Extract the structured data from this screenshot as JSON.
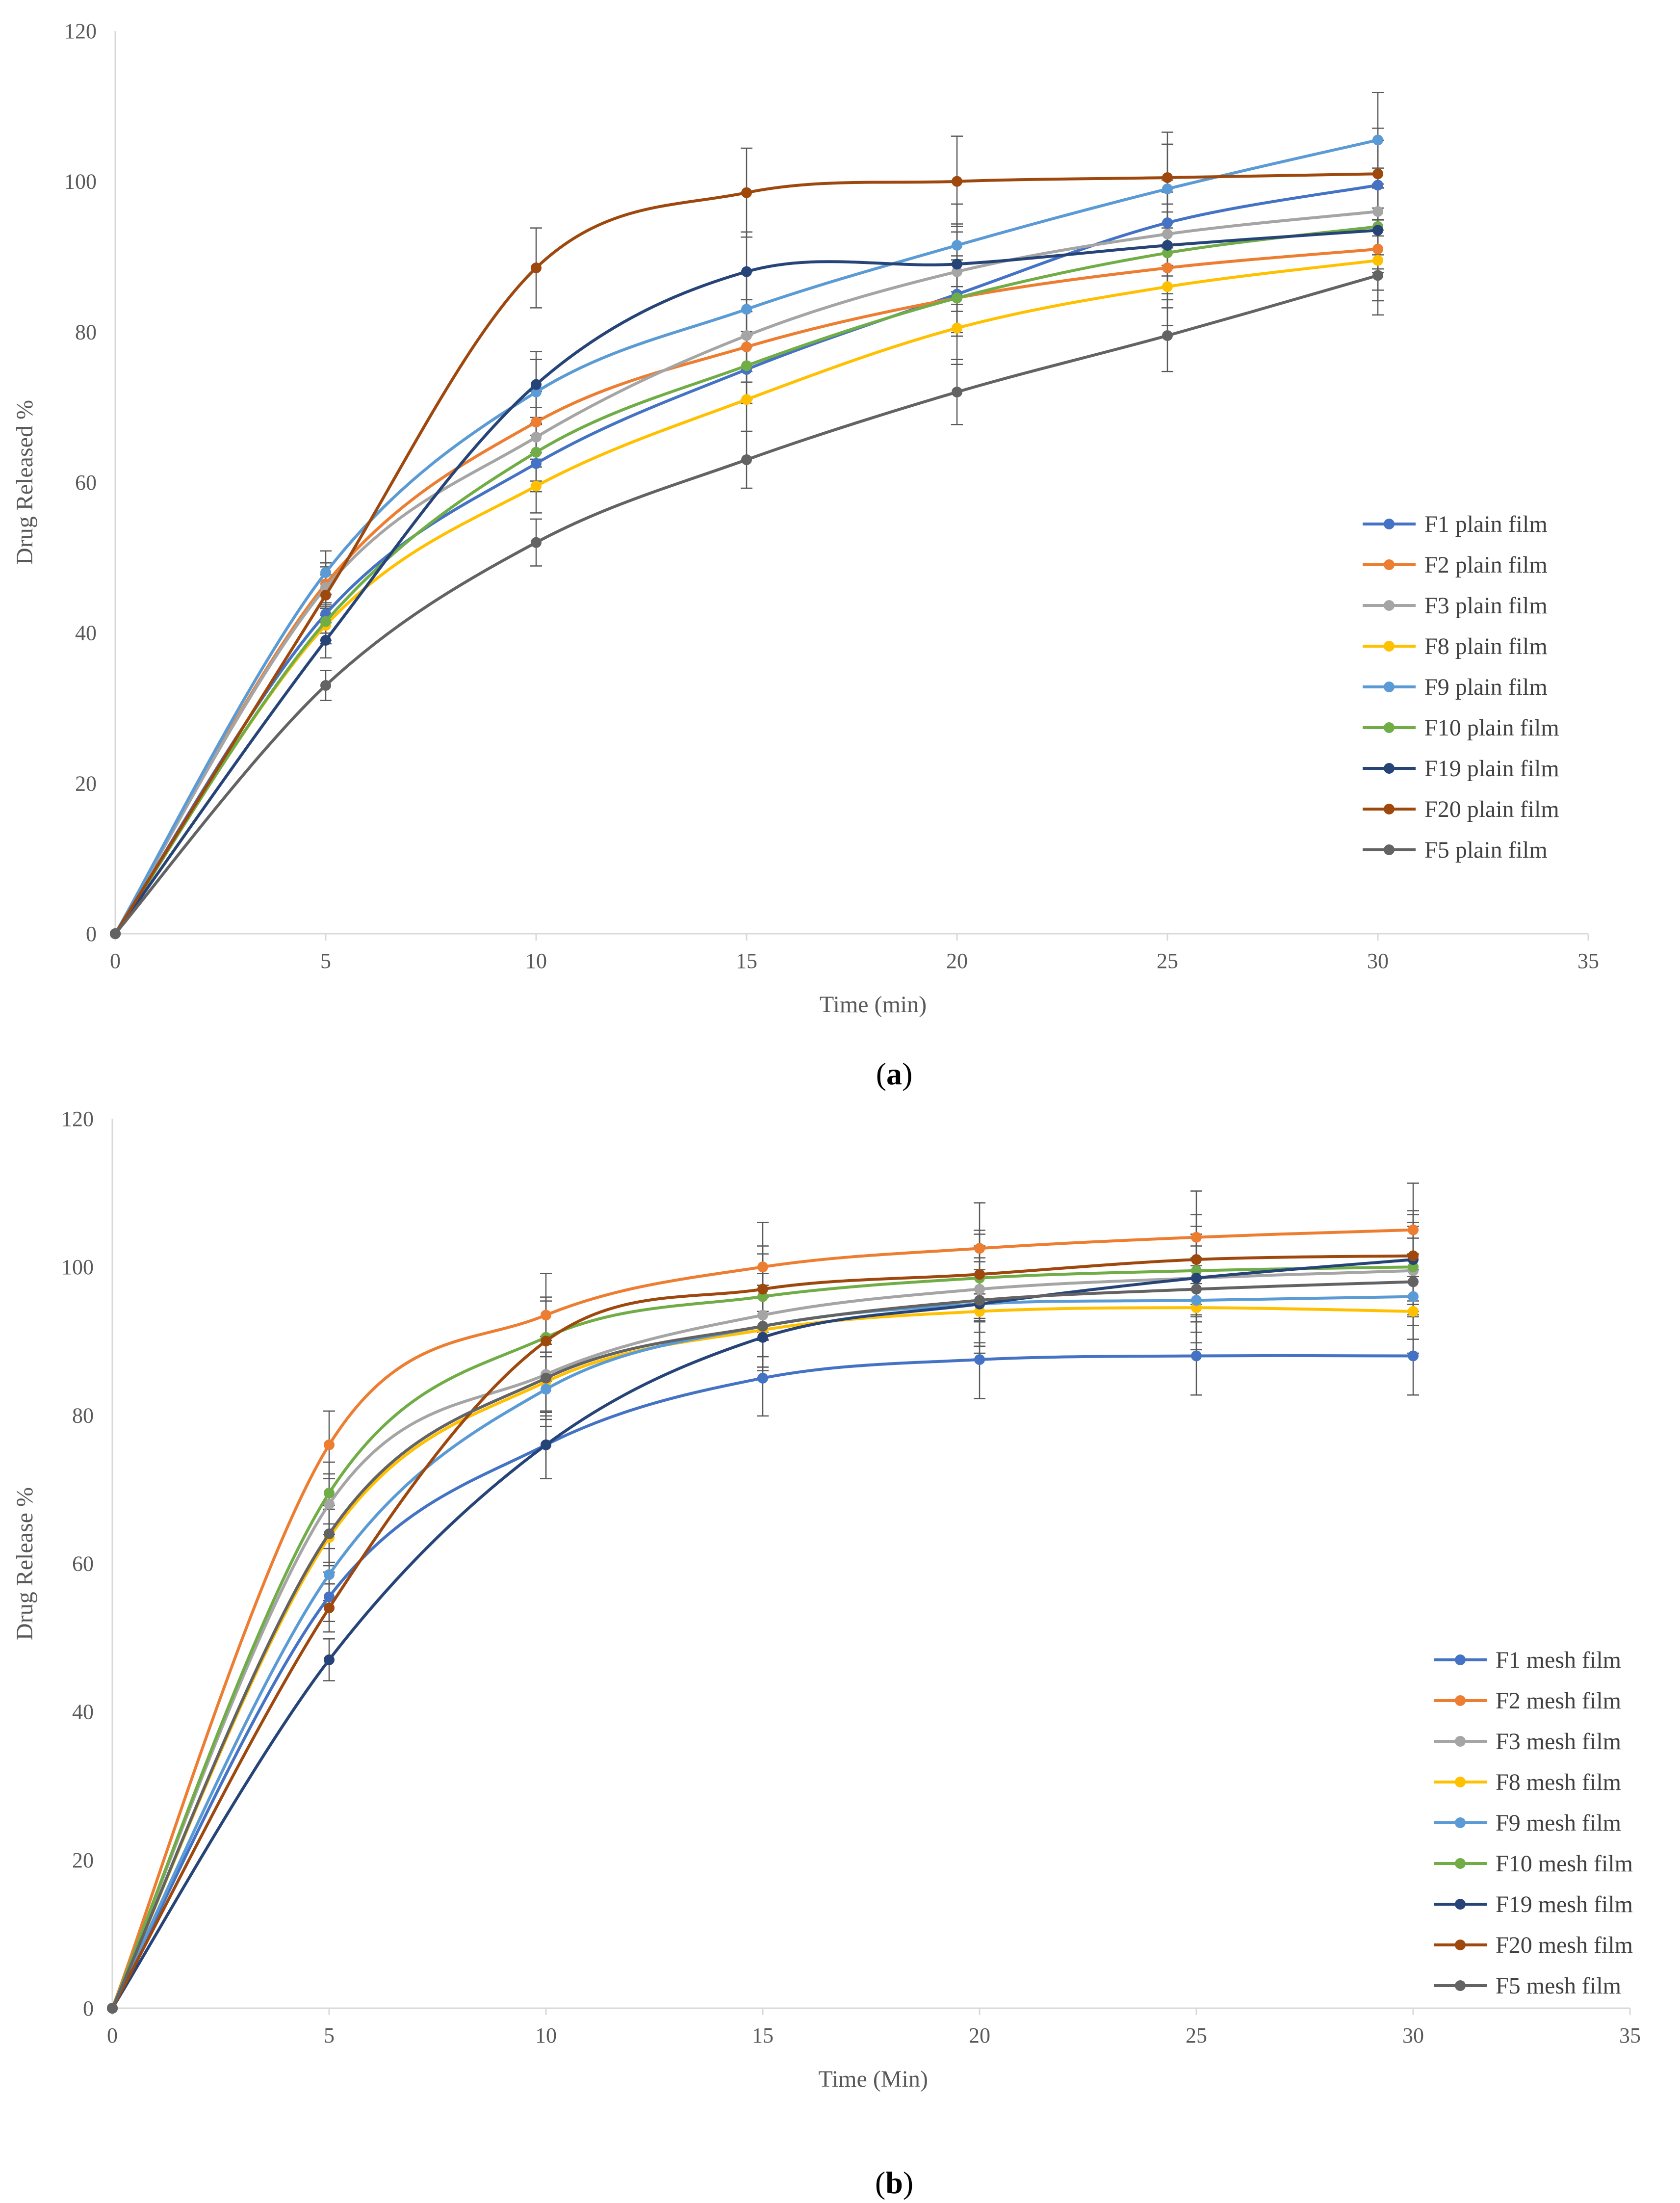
{
  "chart_data": [
    {
      "type": "line",
      "panel_label": "a",
      "title": "",
      "xlabel": "Time (min)",
      "ylabel": "Drug Released %",
      "xlim": [
        0,
        35
      ],
      "ylim": [
        0,
        120
      ],
      "x_ticks": [
        0,
        5,
        10,
        15,
        20,
        25,
        30,
        35
      ],
      "y_ticks": [
        0,
        20,
        40,
        60,
        80,
        100,
        120
      ],
      "grid": false,
      "legend_position": "right",
      "x": [
        0,
        5,
        10,
        15,
        20,
        25,
        30
      ],
      "series": [
        {
          "name": "F1 plain film",
          "color": "#4472C4",
          "values": [
            0,
            42.5,
            62.5,
            75,
            85,
            94.5,
            99.5
          ]
        },
        {
          "name": "F2 plain film",
          "color": "#ED7D31",
          "values": [
            0,
            46.5,
            68,
            78,
            84.5,
            88.5,
            91
          ]
        },
        {
          "name": "F3 plain film",
          "color": "#A5A5A5",
          "values": [
            0,
            46,
            66,
            79.5,
            88,
            93,
            96
          ]
        },
        {
          "name": "F8 plain film",
          "color": "#FFC000",
          "values": [
            0,
            41,
            59.5,
            71,
            80.5,
            86,
            89.5
          ]
        },
        {
          "name": "F9 plain film",
          "color": "#5B9BD5",
          "values": [
            0,
            48,
            72,
            83,
            91.5,
            99,
            105.5
          ]
        },
        {
          "name": "F10 plain film",
          "color": "#70AD47",
          "values": [
            0,
            41.5,
            64,
            75.5,
            84.5,
            90.5,
            94
          ]
        },
        {
          "name": "F19 plain film",
          "color": "#264478",
          "values": [
            0,
            39,
            73,
            88,
            89,
            91.5,
            93.5
          ]
        },
        {
          "name": "F20 plain film",
          "color": "#9E480E",
          "values": [
            0,
            45,
            88.5,
            98.5,
            100,
            100.5,
            101
          ]
        },
        {
          "name": "F5 plain film",
          "color": "#636363",
          "values": [
            0,
            33,
            52,
            63,
            72,
            79.5,
            87.5
          ]
        }
      ]
    },
    {
      "type": "line",
      "panel_label": "b",
      "title": "",
      "xlabel": "Time (Min)",
      "ylabel": "Drug Release %",
      "xlim": [
        0,
        35
      ],
      "ylim": [
        0,
        120
      ],
      "x_ticks": [
        0,
        5,
        10,
        15,
        20,
        25,
        30,
        35
      ],
      "y_ticks": [
        0,
        20,
        40,
        60,
        80,
        100,
        120
      ],
      "grid": false,
      "legend_position": "bottom-right",
      "x": [
        0,
        5,
        10,
        15,
        20,
        25,
        30
      ],
      "series": [
        {
          "name": "F1 mesh film",
          "color": "#4472C4",
          "values": [
            0,
            55.5,
            76,
            85,
            87.5,
            88,
            88
          ]
        },
        {
          "name": "F2 mesh film",
          "color": "#ED7D31",
          "values": [
            0,
            76,
            93.5,
            100,
            102.5,
            104,
            105
          ]
        },
        {
          "name": "F3 mesh film",
          "color": "#A5A5A5",
          "values": [
            0,
            68,
            85.5,
            93.5,
            97,
            98.5,
            99.5
          ]
        },
        {
          "name": "F8 mesh film",
          "color": "#FFC000",
          "values": [
            0,
            63.5,
            84.5,
            91.5,
            94,
            94.5,
            94
          ]
        },
        {
          "name": "F9 mesh film",
          "color": "#5B9BD5",
          "values": [
            0,
            58.5,
            83.5,
            92,
            95,
            95.5,
            96
          ]
        },
        {
          "name": "F10 mesh film",
          "color": "#70AD47",
          "values": [
            0,
            69.5,
            90.5,
            96,
            98.5,
            99.5,
            100
          ]
        },
        {
          "name": "F19 mesh film",
          "color": "#264478",
          "values": [
            0,
            47,
            76,
            90.5,
            95,
            98.5,
            101
          ]
        },
        {
          "name": "F20 mesh film",
          "color": "#9E480E",
          "values": [
            0,
            54,
            90,
            97,
            99,
            101,
            101.5
          ]
        },
        {
          "name": "F5 mesh film",
          "color": "#636363",
          "values": [
            0,
            64,
            85,
            92,
            95.5,
            97,
            98
          ]
        }
      ]
    }
  ]
}
